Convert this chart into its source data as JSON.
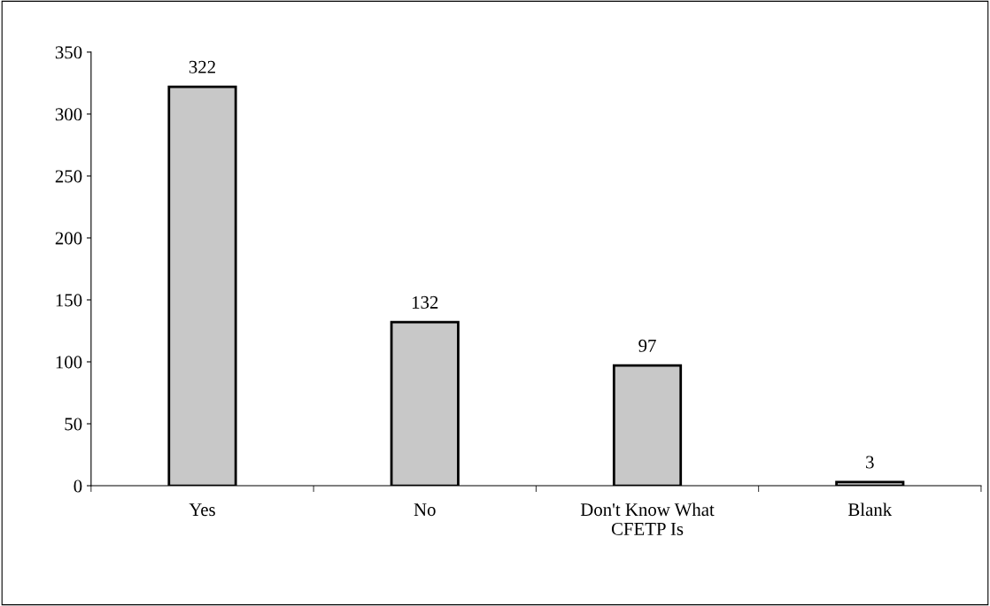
{
  "chart_data": {
    "type": "bar",
    "categories": [
      "Yes",
      "No",
      "Don't Know What\nCFETP Is",
      "Blank"
    ],
    "values": [
      322,
      132,
      97,
      3
    ],
    "color": "#c8c8c8",
    "ylim": [
      0,
      350
    ],
    "yticks": [
      0,
      50,
      100,
      150,
      200,
      250,
      300,
      350
    ],
    "data_labels": true,
    "grid": false,
    "legend": false
  }
}
